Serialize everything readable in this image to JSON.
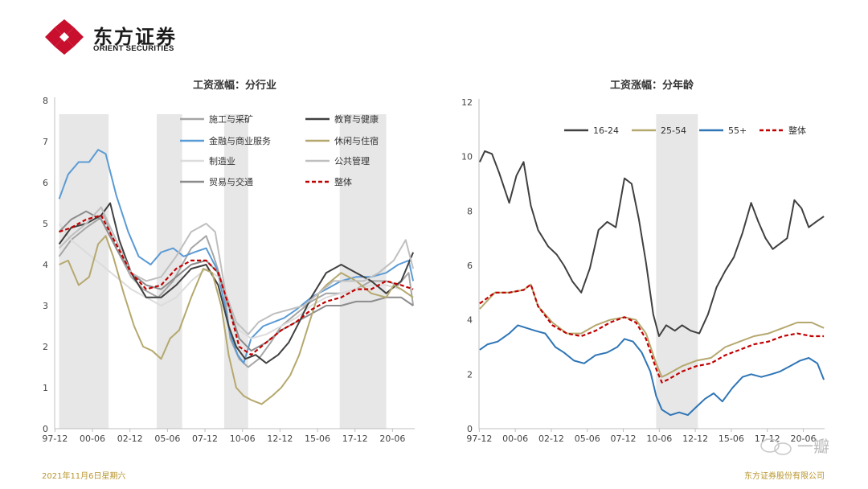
{
  "header": {
    "logo_cn": "东方证券",
    "logo_en": "ORIENT SECURITIES",
    "brand_color": "#c8102e"
  },
  "footer": {
    "date": "2021年11月6日星期六",
    "company": "东方证券股份有限公司",
    "color": "#b8962e"
  },
  "watermark": {
    "text": "一瓣"
  },
  "chart_data": [
    {
      "type": "line",
      "title": "工资涨幅：分行业",
      "ylim": [
        0,
        8
      ],
      "yticks": [
        0,
        1,
        2,
        3,
        4,
        5,
        6,
        7,
        8
      ],
      "xlim": [
        1997.9,
        2021.9
      ],
      "xticks": [
        {
          "label": "97-12",
          "x": 1997.92
        },
        {
          "label": "00-06",
          "x": 2000.42
        },
        {
          "label": "02-12",
          "x": 2002.92
        },
        {
          "label": "05-06",
          "x": 2005.42
        },
        {
          "label": "07-12",
          "x": 2007.92
        },
        {
          "label": "10-06",
          "x": 2010.42
        },
        {
          "label": "12-12",
          "x": 2012.92
        },
        {
          "label": "15-06",
          "x": 2015.42
        },
        {
          "label": "17-12",
          "x": 2017.92
        },
        {
          "label": "20-06",
          "x": 2020.42
        }
      ],
      "shaded_periods": [
        [
          1998.2,
          2001.5
        ],
        [
          2004.7,
          2006.4
        ],
        [
          2009.2,
          2010.8
        ],
        [
          2016.9,
          2020.0
        ]
      ],
      "legend_position": "top",
      "series": [
        {
          "name": "施工与采矿",
          "color": "#a6a6a6",
          "dash": false,
          "x": [
            1998.2,
            1999,
            2000,
            2001.2,
            2002,
            2003,
            2003.8,
            2004.8,
            2005.8,
            2007,
            2008,
            2008.5,
            2009.2,
            2009.6,
            2010.2,
            2010.8,
            2011.5,
            2012.3,
            2013,
            2014,
            2015,
            2016,
            2017,
            2018,
            2019,
            2020,
            2020.8,
            2021.5,
            2021.8
          ],
          "y": [
            4.2,
            4.6,
            4.9,
            5.2,
            4.4,
            3.7,
            3.4,
            3.2,
            3.6,
            4.4,
            4.7,
            4.2,
            3.4,
            2.2,
            1.7,
            1.5,
            1.7,
            2.1,
            2.5,
            2.8,
            3.1,
            3.3,
            3.3,
            3.4,
            3.6,
            3.6,
            3.5,
            3.8,
            3.0
          ]
        },
        {
          "name": "金融与商业服务",
          "color": "#5b9bd5",
          "dash": false,
          "x": [
            1998.2,
            1998.8,
            1999.5,
            2000.2,
            2000.8,
            2001.3,
            2002,
            2002.8,
            2003.5,
            2004.3,
            2005,
            2005.8,
            2006.5,
            2007.2,
            2008,
            2008.7,
            2009.2,
            2009.6,
            2010.1,
            2010.5,
            2011,
            2011.8,
            2012.5,
            2013.2,
            2014,
            2015,
            2016,
            2017,
            2018,
            2019,
            2020,
            2020.8,
            2021.5,
            2021.8
          ],
          "y": [
            5.6,
            6.2,
            6.5,
            6.5,
            6.8,
            6.7,
            5.7,
            4.8,
            4.2,
            4.0,
            4.3,
            4.4,
            4.2,
            4.3,
            4.4,
            3.9,
            3.1,
            2.3,
            1.8,
            1.6,
            2.2,
            2.5,
            2.6,
            2.7,
            2.9,
            3.2,
            3.4,
            3.6,
            3.7,
            3.7,
            3.8,
            4.0,
            4.1,
            3.6
          ]
        },
        {
          "name": "制造业",
          "color": "#dcdcdc",
          "dash": false,
          "x": [
            1998.2,
            1999,
            2000,
            2001,
            2002,
            2003,
            2004,
            2005,
            2006,
            2007,
            2008,
            2008.8,
            2009.5,
            2010.2,
            2011,
            2012,
            2013,
            2014,
            2015,
            2016,
            2017,
            2018,
            2019,
            2020,
            2021,
            2021.8
          ],
          "y": [
            5.0,
            4.6,
            4.3,
            4.0,
            3.7,
            3.4,
            3.2,
            3.0,
            3.2,
            3.6,
            3.9,
            3.7,
            3.1,
            2.4,
            2.2,
            2.3,
            2.5,
            2.7,
            3.0,
            3.2,
            3.3,
            3.4,
            3.5,
            3.5,
            3.4,
            3.2
          ]
        },
        {
          "name": "贸易与交通",
          "color": "#8c8c8c",
          "dash": false,
          "x": [
            1998.2,
            1999,
            2000,
            2001,
            2002,
            2003,
            2004,
            2005,
            2006,
            2007,
            2008,
            2008.8,
            2009.5,
            2010.2,
            2011,
            2012,
            2013,
            2014,
            2015,
            2016,
            2017,
            2018,
            2019,
            2020,
            2021,
            2021.8
          ],
          "y": [
            4.8,
            5.1,
            5.3,
            5.1,
            4.4,
            3.8,
            3.5,
            3.4,
            3.7,
            4.0,
            4.1,
            3.8,
            3.0,
            2.2,
            1.9,
            2.1,
            2.4,
            2.6,
            2.8,
            3.0,
            3.0,
            3.1,
            3.1,
            3.2,
            3.2,
            3.0
          ]
        },
        {
          "name": "教育与健康",
          "color": "#404040",
          "dash": false,
          "x": [
            1998.2,
            1999,
            2000,
            2001,
            2001.6,
            2002.2,
            2003,
            2004,
            2005,
            2006,
            2007,
            2008,
            2008.8,
            2009.5,
            2010,
            2010.6,
            2011.3,
            2012,
            2012.8,
            2013.5,
            2014.2,
            2015,
            2016,
            2017,
            2018,
            2019,
            2020,
            2021,
            2021.8
          ],
          "y": [
            4.5,
            4.9,
            5.0,
            5.2,
            5.5,
            4.6,
            3.8,
            3.2,
            3.2,
            3.5,
            3.9,
            4.0,
            3.5,
            2.5,
            2.0,
            1.7,
            1.8,
            1.6,
            1.8,
            2.1,
            2.6,
            3.2,
            3.8,
            4.0,
            3.8,
            3.6,
            3.3,
            3.6,
            4.3
          ]
        },
        {
          "name": "休闲与住宿",
          "color": "#b5a86e",
          "dash": false,
          "x": [
            1998.2,
            1998.8,
            1999.5,
            2000.2,
            2000.8,
            2001.3,
            2001.8,
            2002.5,
            2003.2,
            2003.8,
            2004.4,
            2005,
            2005.6,
            2006.2,
            2007,
            2007.8,
            2008.4,
            2009,
            2009.5,
            2010,
            2010.5,
            2011,
            2011.7,
            2012.4,
            2013,
            2013.6,
            2014.2,
            2014.8,
            2015.5,
            2016,
            2017,
            2018,
            2019,
            2020,
            2020.5,
            2021,
            2021.8
          ],
          "y": [
            4.0,
            4.1,
            3.5,
            3.7,
            4.5,
            4.7,
            4.2,
            3.3,
            2.5,
            2.0,
            1.9,
            1.7,
            2.2,
            2.4,
            3.2,
            3.9,
            3.8,
            3.0,
            1.8,
            1.0,
            0.8,
            0.7,
            0.6,
            0.8,
            1.0,
            1.3,
            1.8,
            2.5,
            3.3,
            3.5,
            3.8,
            3.6,
            3.3,
            3.2,
            3.5,
            3.4,
            3.2
          ]
        },
        {
          "name": "公共管理",
          "color": "#bfbfbf",
          "dash": false,
          "x": [
            1998.2,
            1999,
            2000,
            2001,
            2002,
            2003,
            2004,
            2005,
            2006,
            2007,
            2008,
            2008.6,
            2009.3,
            2010,
            2010.8,
            2011.5,
            2012.5,
            2013.5,
            2014.5,
            2015.5,
            2016.5,
            2017.5,
            2018.5,
            2019.5,
            2020.5,
            2021.3,
            2021.8
          ],
          "y": [
            4.4,
            4.7,
            5.0,
            5.4,
            4.6,
            3.8,
            3.6,
            3.7,
            4.2,
            4.8,
            5.0,
            4.8,
            3.3,
            2.6,
            2.3,
            2.6,
            2.8,
            2.9,
            3.0,
            3.3,
            3.6,
            3.6,
            3.6,
            3.8,
            4.1,
            4.6,
            3.9
          ]
        },
        {
          "name": "整体",
          "color": "#c00000",
          "dash": true,
          "x": [
            1998.2,
            1999,
            2000,
            2001,
            2002,
            2003,
            2004,
            2005,
            2006,
            2007,
            2008,
            2008.8,
            2009.5,
            2010.2,
            2011,
            2012,
            2013,
            2014,
            2015,
            2016,
            2017,
            2018,
            2019,
            2020,
            2021,
            2021.8
          ],
          "y": [
            4.8,
            4.9,
            5.1,
            5.2,
            4.5,
            3.8,
            3.4,
            3.5,
            3.9,
            4.1,
            4.1,
            3.8,
            3.0,
            2.0,
            1.8,
            2.1,
            2.4,
            2.6,
            2.9,
            3.1,
            3.2,
            3.4,
            3.4,
            3.6,
            3.5,
            3.4
          ]
        }
      ]
    },
    {
      "type": "line",
      "title": "工资涨幅：分年龄",
      "ylim": [
        0,
        12
      ],
      "yticks": [
        0,
        2,
        4,
        6,
        8,
        10,
        12
      ],
      "xlim": [
        1997.9,
        2021.9
      ],
      "xticks": [
        {
          "label": "97-12",
          "x": 1997.92
        },
        {
          "label": "00-06",
          "x": 2000.42
        },
        {
          "label": "02-12",
          "x": 2002.92
        },
        {
          "label": "05-06",
          "x": 2005.42
        },
        {
          "label": "07-12",
          "x": 2007.92
        },
        {
          "label": "10-06",
          "x": 2010.42
        },
        {
          "label": "12-12",
          "x": 2012.92
        },
        {
          "label": "15-06",
          "x": 2015.42
        },
        {
          "label": "17-12",
          "x": 2017.92
        },
        {
          "label": "20-06",
          "x": 2020.42
        }
      ],
      "shaded_periods": [
        [
          2010.2,
          2013.1
        ]
      ],
      "legend_position": "top",
      "series": [
        {
          "name": "16-24",
          "color": "#404040",
          "dash": false,
          "x": [
            1997.95,
            1998.3,
            1998.8,
            1999.3,
            2000,
            2000.5,
            2001,
            2001.5,
            2002,
            2002.7,
            2003.3,
            2003.8,
            2004.4,
            2005,
            2005.6,
            2006.2,
            2006.8,
            2007.4,
            2008,
            2008.5,
            2009,
            2009.5,
            2010,
            2010.4,
            2010.9,
            2011.5,
            2012,
            2012.6,
            2013.2,
            2013.8,
            2014.4,
            2015,
            2015.6,
            2016.2,
            2016.8,
            2017.3,
            2017.8,
            2018.3,
            2018.8,
            2019.3,
            2019.8,
            2020.3,
            2020.8,
            2021.3,
            2021.85
          ],
          "y": [
            9.8,
            10.2,
            10.1,
            9.4,
            8.3,
            9.3,
            9.8,
            8.2,
            7.3,
            6.7,
            6.4,
            6.0,
            5.4,
            5.0,
            5.9,
            7.3,
            7.6,
            7.4,
            9.2,
            9.0,
            7.7,
            6.1,
            4.2,
            3.4,
            3.8,
            3.6,
            3.8,
            3.6,
            3.5,
            4.2,
            5.2,
            5.8,
            6.3,
            7.2,
            8.3,
            7.6,
            7.0,
            6.6,
            6.8,
            7.0,
            8.4,
            8.1,
            7.4,
            7.6,
            7.8
          ]
        },
        {
          "name": "25-54",
          "color": "#b5a86e",
          "dash": false,
          "x": [
            1997.95,
            1999,
            2000,
            2001,
            2001.5,
            2002,
            2003,
            2004,
            2005,
            2006,
            2007,
            2008,
            2008.8,
            2009.5,
            2010.2,
            2010.6,
            2011,
            2012,
            2013,
            2014,
            2015,
            2016,
            2017,
            2018,
            2019,
            2020,
            2021,
            2021.85
          ],
          "y": [
            4.4,
            5.0,
            5.0,
            5.1,
            5.3,
            4.5,
            3.9,
            3.5,
            3.5,
            3.8,
            4.0,
            4.1,
            4.0,
            3.5,
            2.4,
            1.9,
            2.0,
            2.3,
            2.5,
            2.6,
            3.0,
            3.2,
            3.4,
            3.5,
            3.7,
            3.9,
            3.9,
            3.7
          ]
        },
        {
          "name": "55+",
          "color": "#2e75b6",
          "dash": false,
          "x": [
            1997.95,
            1998.5,
            1999.2,
            2000,
            2000.6,
            2001.2,
            2001.8,
            2002.5,
            2003.2,
            2003.8,
            2004.5,
            2005.2,
            2006,
            2006.8,
            2007.5,
            2008,
            2008.6,
            2009.2,
            2009.8,
            2010.2,
            2010.6,
            2011.2,
            2011.8,
            2012.4,
            2013,
            2013.6,
            2014.2,
            2014.8,
            2015.5,
            2016.2,
            2016.8,
            2017.5,
            2018.2,
            2018.8,
            2019.5,
            2020.2,
            2020.8,
            2021.4,
            2021.85
          ],
          "y": [
            2.9,
            3.1,
            3.2,
            3.5,
            3.8,
            3.7,
            3.6,
            3.5,
            3.0,
            2.8,
            2.5,
            2.4,
            2.7,
            2.8,
            3.0,
            3.3,
            3.2,
            2.8,
            2.1,
            1.2,
            0.7,
            0.5,
            0.6,
            0.5,
            0.8,
            1.1,
            1.3,
            1.0,
            1.5,
            1.9,
            2.0,
            1.9,
            2.0,
            2.1,
            2.3,
            2.5,
            2.6,
            2.4,
            1.8
          ]
        },
        {
          "name": "整体",
          "color": "#c00000",
          "dash": true,
          "x": [
            1997.95,
            1999,
            2000,
            2001,
            2001.5,
            2002,
            2003,
            2004,
            2005,
            2006,
            2007,
            2008,
            2008.8,
            2009.5,
            2010.2,
            2010.6,
            2011,
            2012,
            2013,
            2014,
            2015,
            2016,
            2017,
            2018,
            2019,
            2020,
            2021,
            2021.85
          ],
          "y": [
            4.6,
            5.0,
            5.0,
            5.1,
            5.3,
            4.5,
            3.8,
            3.5,
            3.4,
            3.6,
            3.9,
            4.1,
            3.9,
            3.3,
            2.2,
            1.7,
            1.8,
            2.1,
            2.3,
            2.4,
            2.7,
            2.9,
            3.1,
            3.2,
            3.4,
            3.5,
            3.4,
            3.4
          ]
        }
      ]
    }
  ]
}
